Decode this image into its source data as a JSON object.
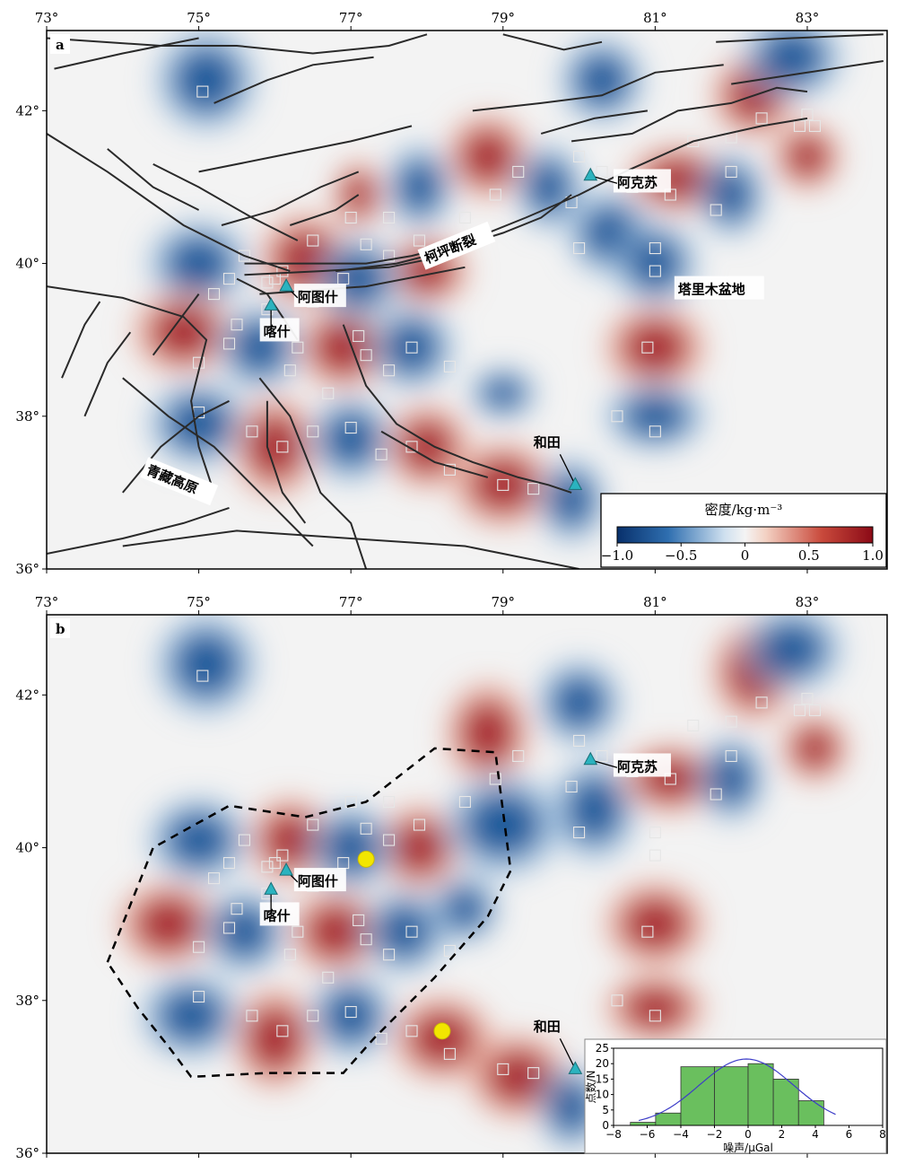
{
  "panel_a": {
    "letter": "a",
    "lon_ticks": [
      "73°",
      "75°",
      "77°",
      "79°",
      "81°",
      "83°"
    ],
    "lat_ticks": [
      "42°",
      "40°",
      "38°",
      "36°"
    ],
    "places": {
      "aksu": "阿克苏",
      "artux": "阿图什",
      "kashgar": "喀什",
      "hotan": "和田",
      "tarim": "塔里木盆地",
      "kalpin": "柯坪断裂",
      "tibet": "青藏高原"
    },
    "colorbar": {
      "title": "密度/kg·m⁻³",
      "ticks": [
        "−1.0",
        "−0.5",
        "0",
        "0.5",
        "1.0"
      ],
      "low_color": "#08306b",
      "mid_color": "#f4f4f4",
      "high_color": "#8b0a16"
    }
  },
  "panel_b": {
    "letter": "b",
    "lon_ticks": [
      "73°",
      "75°",
      "77°",
      "79°",
      "81°",
      "83°"
    ],
    "lat_ticks": [
      "42°",
      "40°",
      "38°",
      "36°"
    ],
    "places": {
      "aksu": "阿克苏",
      "artux": "阿图什",
      "kashgar": "喀什",
      "hotan": "和田"
    },
    "inset_histogram": {
      "type": "bar",
      "xlabel": "噪声/μGal",
      "ylabel": "点数/N",
      "x_ticks": [
        "−8",
        "−6",
        "−4",
        "−2",
        "0",
        "2",
        "4",
        "6",
        "8"
      ],
      "y_ticks": [
        "0",
        "5",
        "10",
        "15",
        "20",
        "25"
      ],
      "bin_edges": [
        -7,
        -5.5,
        -4,
        -2,
        0,
        1.5,
        3,
        4.5
      ],
      "counts": [
        1,
        4,
        19,
        19,
        20,
        15,
        8
      ],
      "bar_color": "#6abf5e",
      "curve_color": "#3c3cc8",
      "xlim": [
        -8,
        8
      ],
      "ylim": [
        0,
        25
      ]
    }
  }
}
